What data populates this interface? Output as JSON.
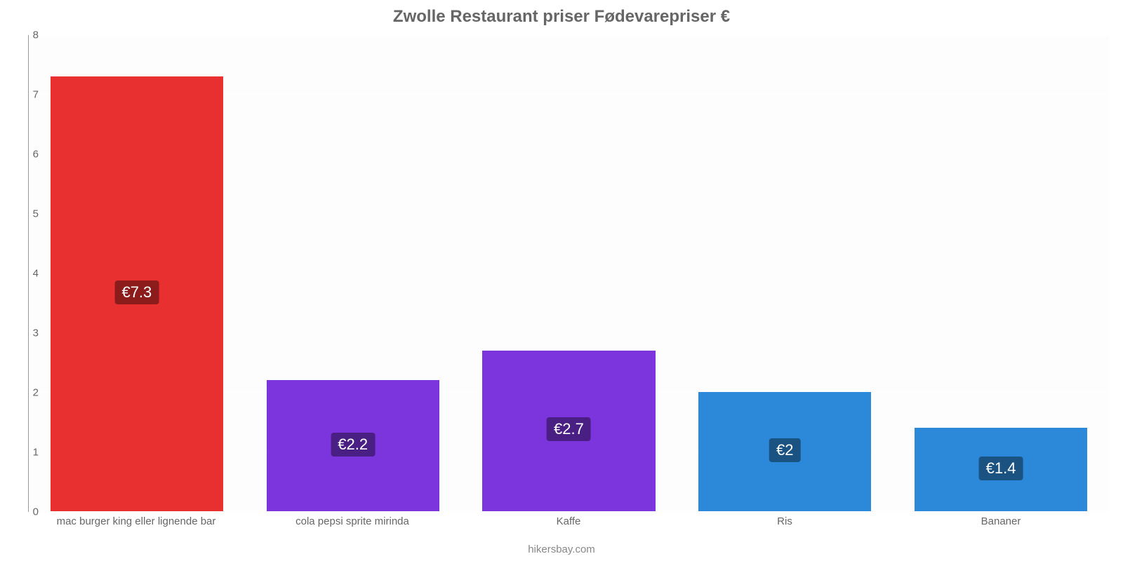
{
  "chart": {
    "type": "bar",
    "title": "Zwolle Restaurant priser Fødevarepriser €",
    "title_fontsize": 24,
    "title_color": "#666666",
    "attribution": "hikersbay.com",
    "attribution_color": "#888888",
    "background_color": "#ffffff",
    "plot_background_color": "#fdfdfd",
    "axis_color": "#999999",
    "tick_color": "#666666",
    "tick_fontsize": 15,
    "value_label_fontsize": 22,
    "value_label_text_color": "#ffffff",
    "ylim": [
      0,
      8
    ],
    "ytick_step": 1,
    "yticks": [
      0,
      1,
      2,
      3,
      4,
      5,
      6,
      7,
      8
    ],
    "bar_width_ratio": 0.8,
    "categories": [
      "mac burger king eller lignende bar",
      "cola pepsi sprite mirinda",
      "Kaffe",
      "Ris",
      "Bananer"
    ],
    "values": [
      7.3,
      2.2,
      2.7,
      2.0,
      1.4
    ],
    "value_labels": [
      "€7.3",
      "€2.2",
      "€2.7",
      "€2",
      "€1.4"
    ],
    "bar_colors": [
      "#e7302f",
      "#7c35dc",
      "#7c35dc",
      "#2c88d9",
      "#2c88d9"
    ],
    "label_bg_colors": [
      "#8c1c1c",
      "#4a1f84",
      "#4a1f84",
      "#1a5282",
      "#1a5282"
    ]
  }
}
